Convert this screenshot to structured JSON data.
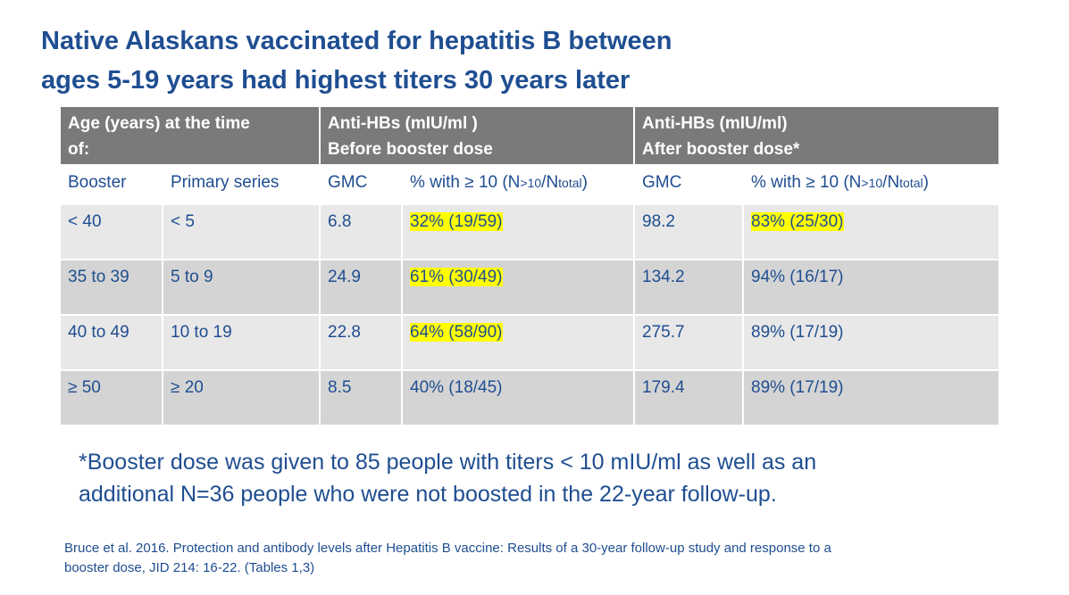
{
  "title": {
    "line1": "Native Alaskans vaccinated for hepatitis B between",
    "line2": "ages 5-19 years had highest titers 30 years later"
  },
  "table": {
    "headers": {
      "age_line1": "Age (years) at the time",
      "age_line2": "of:",
      "before_line1": "Anti-HBs (mIU/ml )",
      "before_line2": "Before booster dose",
      "after_line1": "Anti-HBs (mIU/ml)",
      "after_line2": "After booster dose*"
    },
    "subheaders": {
      "booster": "Booster",
      "primary": "Primary series",
      "gmc_before": "GMC",
      "pct_before_main": "% with ≥ 10 (N",
      "pct_before_sub1": ">10",
      "pct_before_slash": "/N",
      "pct_before_sub2": "total",
      "pct_before_close": ")",
      "gmc_after": "GMC",
      "pct_after_main": "% with ≥ 10 (N",
      "pct_after_sub1": ">10",
      "pct_after_slash": "/N",
      "pct_after_sub2": "total",
      "pct_after_close": ")"
    },
    "rows": [
      {
        "booster": "< 40",
        "primary": "< 5",
        "gmc_before": "6.8",
        "pct_before": "32% (19/59)",
        "gmc_after": "98.2",
        "pct_after": "83% (25/30)"
      },
      {
        "booster": "35 to 39",
        "primary": "5 to 9",
        "gmc_before": "24.9",
        "pct_before": "61% (30/49)",
        "gmc_after": "134.2",
        "pct_after": "94% (16/17)"
      },
      {
        "booster": "40 to 49",
        "primary": "10 to 19",
        "gmc_before": "22.8",
        "pct_before": "64% (58/90)",
        "gmc_after": "275.7",
        "pct_after": "89% (17/19)"
      },
      {
        "booster": "≥ 50",
        "primary": "≥ 20",
        "gmc_before": "8.5",
        "pct_before": "40% (18/45)",
        "gmc_after": "179.4",
        "pct_after": "89% (17/19)"
      }
    ]
  },
  "footnote": {
    "line1": "*Booster dose was given to 85 people with titers < 10 mIU/ml as well as an",
    "line2": "additional N=36 people who were not boosted in the 22-year follow-up."
  },
  "citation": {
    "line1": "Bruce et al. 2016. Protection and antibody levels after Hepatitis B vaccine: Results of a 30-year follow-up study and response to a",
    "line2": "booster dose, JID 214: 16-22. (Tables 1,3)"
  },
  "colors": {
    "text_blue": "#1f4e91",
    "header_gray": "#7a7a7a",
    "highlight": "#ffff00"
  }
}
